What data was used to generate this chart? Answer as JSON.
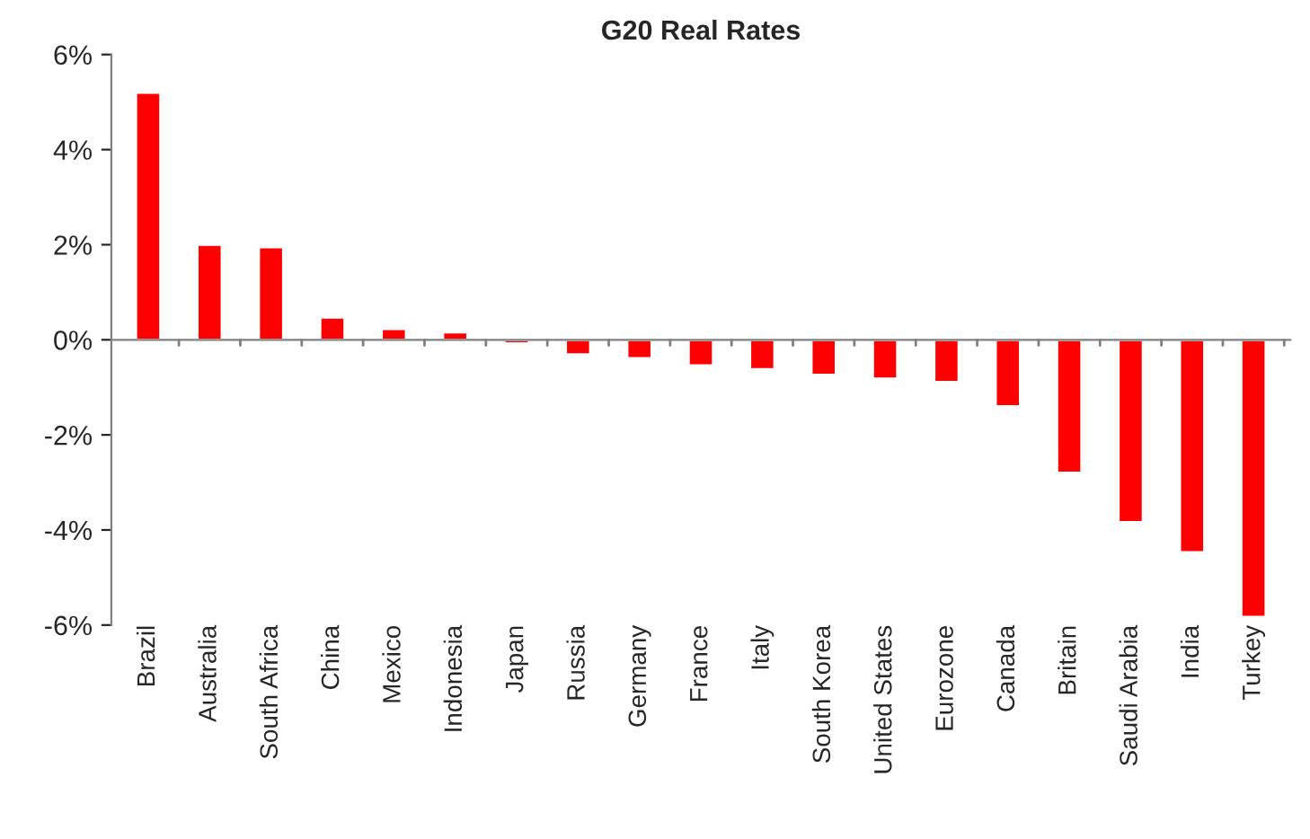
{
  "chart_data": {
    "type": "bar",
    "title": "G20 Real Rates",
    "categories": [
      "Brazil",
      "Australia",
      "South Africa",
      "China",
      "Mexico",
      "Indonesia",
      "Japan",
      "Russia",
      "Germany",
      "France",
      "Italy",
      "South Korea",
      "United States",
      "Eurozone",
      "Canada",
      "Britain",
      "Saudi Arabia",
      "India",
      "Turkey"
    ],
    "values": [
      5.2,
      2.0,
      1.95,
      0.47,
      0.23,
      0.16,
      -0.08,
      -0.31,
      -0.39,
      -0.54,
      -0.62,
      -0.74,
      -0.82,
      -0.89,
      -1.4,
      -2.8,
      -3.84,
      -4.47,
      -5.83
    ],
    "color": "#ff0000",
    "ylim": [
      -6,
      6
    ],
    "yticks": [
      {
        "value": -6,
        "label": "-6%"
      },
      {
        "value": -4,
        "label": "-4%"
      },
      {
        "value": -2,
        "label": "-2%"
      },
      {
        "value": 0,
        "label": "0%"
      },
      {
        "value": 2,
        "label": "2%"
      },
      {
        "value": 4,
        "label": "4%"
      },
      {
        "value": 6,
        "label": "6%"
      }
    ]
  }
}
